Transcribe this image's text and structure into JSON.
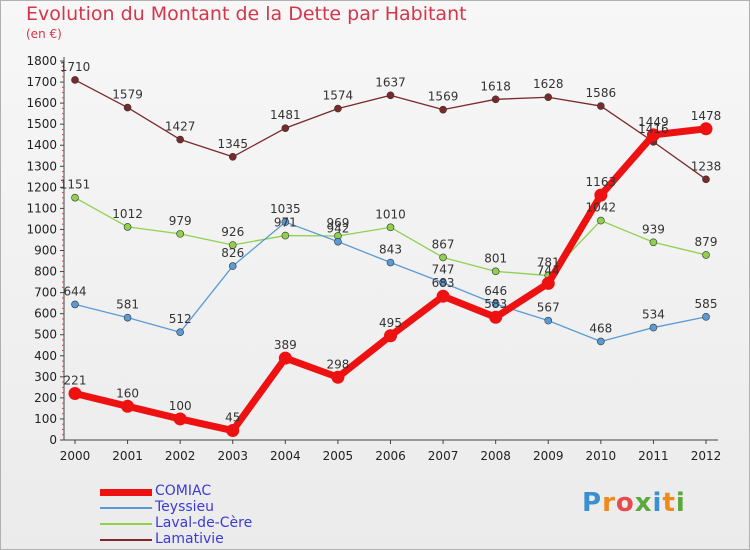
{
  "title": "Evolution du Montant de la Dette par Habitant",
  "subtitle": "(en €)",
  "brand": {
    "letters": [
      "P",
      "r",
      "o",
      "x",
      "i",
      "t",
      "i"
    ],
    "colors": [
      "#3a8fd1",
      "#f08a1c",
      "#e84b4b",
      "#5aa83e",
      "#3a8fd1",
      "#f08a1c",
      "#5aa83e"
    ]
  },
  "chart_data": {
    "type": "line",
    "title": "Evolution du Montant de la Dette par Habitant",
    "ylabel": "(en €)",
    "xlabel": "",
    "x": [
      "2000",
      "2001",
      "2002",
      "2003",
      "2004",
      "2005",
      "2006",
      "2007",
      "2008",
      "2009",
      "2010",
      "2011",
      "2012"
    ],
    "ylim": [
      0,
      1800
    ],
    "yticks": [
      0,
      100,
      200,
      300,
      400,
      500,
      600,
      700,
      800,
      900,
      1000,
      1100,
      1200,
      1300,
      1400,
      1500,
      1600,
      1700,
      1800
    ],
    "grid": false,
    "legend": "bottom-left",
    "series": [
      {
        "name": "Lamativie",
        "color": "#7a2a2a",
        "values": [
          1710,
          1579,
          1427,
          1345,
          1481,
          1574,
          1637,
          1569,
          1618,
          1628,
          1586,
          1416,
          1238
        ],
        "labels": [
          "1710",
          "1579",
          "1427",
          "1345",
          "1481",
          "1574",
          "1637",
          "1569",
          "1618",
          "1628",
          "1586",
          "1416",
          "1238"
        ]
      },
      {
        "name": "Laval-de-Cère",
        "color": "#8fd14f",
        "values": [
          1151,
          1012,
          979,
          926,
          971,
          969,
          1010,
          867,
          801,
          781,
          1042,
          939,
          879
        ],
        "labels": [
          "1151",
          "1012",
          "979",
          "926",
          "971",
          "969",
          "1010",
          "867",
          "801",
          "781",
          "1042",
          "939",
          "879"
        ]
      },
      {
        "name": "Teyssieu",
        "color": "#5b9bd5",
        "values": [
          644,
          581,
          512,
          826,
          1035,
          942,
          843,
          747,
          646,
          567,
          468,
          534,
          585
        ],
        "labels": [
          "644",
          "581",
          "512",
          "826",
          "1035",
          "942",
          "843",
          "747",
          "646",
          "567",
          "468",
          "534",
          "585"
        ]
      },
      {
        "name": "COMIAC",
        "color": "#ee1111",
        "values": [
          221,
          160,
          100,
          45,
          389,
          298,
          495,
          683,
          583,
          744,
          1163,
          1449,
          1478
        ],
        "labels": [
          "221",
          "160",
          "100",
          "45",
          "389",
          "298",
          "495",
          "683",
          "583",
          "744",
          "1163",
          "1449",
          "1478"
        ]
      }
    ]
  },
  "legend_order": [
    "COMIAC",
    "Teyssieu",
    "Laval-de-Cère",
    "Lamativie"
  ]
}
